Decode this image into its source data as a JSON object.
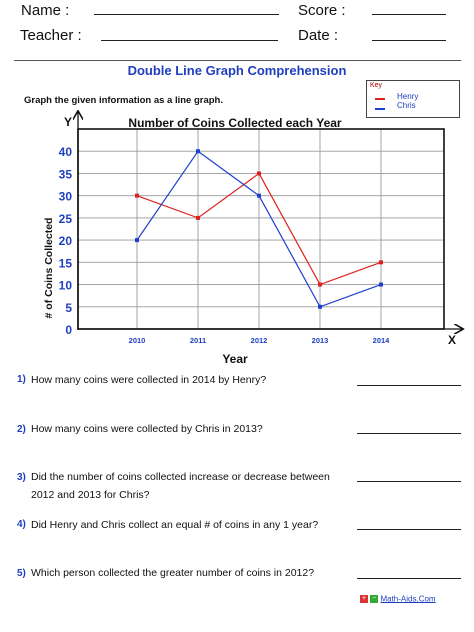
{
  "header": {
    "name_label": "Name :",
    "score_label": "Score :",
    "teacher_label": "Teacher :",
    "date_label": "Date :"
  },
  "worksheet": {
    "title": "Double Line Graph Comprehension",
    "instruction": "Graph the given information as a line graph."
  },
  "key": {
    "title": "Key",
    "items": [
      {
        "label": "Henry",
        "color": "#e02020"
      },
      {
        "label": "Chris",
        "color": "#1f3fd0"
      }
    ]
  },
  "chart_data": {
    "type": "line",
    "title": "Number of Coins Collected each Year",
    "xlabel": "Year",
    "ylabel": "# of Coins Collected",
    "x_axis_letter": "X",
    "y_axis_letter": "Y",
    "categories": [
      "2010",
      "2011",
      "2012",
      "2013",
      "2014"
    ],
    "yticks": [
      0,
      5,
      10,
      15,
      20,
      25,
      30,
      35,
      40
    ],
    "ylim": [
      0,
      45
    ],
    "grid": true,
    "legend_position": "top-right",
    "series": [
      {
        "name": "Henry",
        "color": "#e02020",
        "values": [
          30,
          25,
          35,
          10,
          15
        ]
      },
      {
        "name": "Chris",
        "color": "#1f3fd0",
        "values": [
          20,
          40,
          30,
          5,
          10
        ]
      }
    ]
  },
  "questions": [
    {
      "num": "1)",
      "text": "How many coins were collected in 2014 by Henry?"
    },
    {
      "num": "2)",
      "text": "How many coins were collected by Chris in 2013?"
    },
    {
      "num": "3)",
      "text": "Did the number of coins collected increase or decrease between 2012 and 2013 for Chris?"
    },
    {
      "num": "4)",
      "text": "Did Henry and Chris collect an equal # of coins in any 1 year?"
    },
    {
      "num": "5)",
      "text": "Which person collected the greater number of coins in 2012?"
    }
  ],
  "footer": {
    "site": "Math-Aids.Com"
  }
}
